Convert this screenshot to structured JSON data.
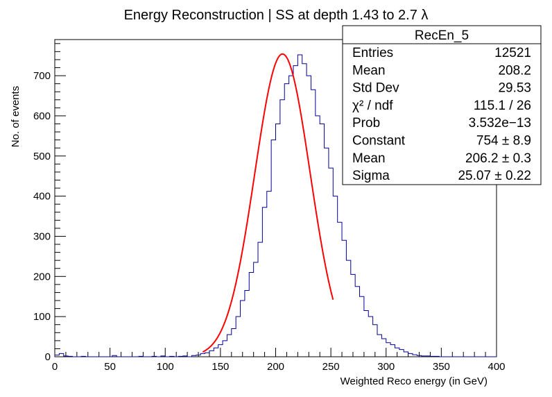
{
  "chart_data": {
    "type": "bar",
    "title": "Energy Reconstruction | SS at depth 1.43 to 2.7 λ",
    "xlabel": "Weighted Reco energy (in GeV)",
    "ylabel": "No. of events",
    "xlim": [
      0,
      400
    ],
    "ylim": [
      0,
      790
    ],
    "xticks": [
      0,
      50,
      100,
      150,
      200,
      250,
      300,
      350,
      400
    ],
    "yticks": [
      0,
      100,
      200,
      300,
      400,
      500,
      600,
      700
    ],
    "bin_width": 4,
    "histogram": {
      "name": "RecEn_5",
      "color": "#000099",
      "bin_low_edges": [
        0,
        4,
        8,
        12,
        16,
        20,
        24,
        28,
        32,
        36,
        40,
        44,
        48,
        52,
        56,
        60,
        64,
        68,
        72,
        76,
        80,
        84,
        88,
        92,
        96,
        100,
        104,
        108,
        112,
        116,
        120,
        124,
        128,
        132,
        136,
        140,
        144,
        148,
        152,
        156,
        160,
        164,
        168,
        172,
        176,
        180,
        184,
        188,
        192,
        196,
        200,
        204,
        208,
        212,
        216,
        220,
        224,
        228,
        232,
        236,
        240,
        244,
        248,
        252,
        256,
        260,
        264,
        268,
        272,
        276,
        280,
        284,
        288,
        292,
        296,
        300,
        304,
        308,
        312,
        316,
        320,
        324,
        328,
        332,
        336,
        340,
        344,
        348,
        352,
        356,
        360,
        364,
        368,
        372,
        376,
        380,
        384,
        388,
        392,
        396
      ],
      "counts": [
        4,
        8,
        2,
        1,
        0,
        0,
        1,
        0,
        0,
        0,
        0,
        0,
        0,
        3,
        0,
        0,
        0,
        0,
        0,
        1,
        0,
        0,
        1,
        0,
        2,
        0,
        1,
        0,
        1,
        2,
        0,
        3,
        4,
        8,
        10,
        15,
        22,
        30,
        40,
        55,
        70,
        100,
        140,
        165,
        210,
        235,
        285,
        372,
        412,
        540,
        580,
        640,
        680,
        700,
        725,
        752,
        730,
        700,
        665,
        600,
        580,
        520,
        470,
        400,
        335,
        290,
        240,
        205,
        175,
        150,
        115,
        100,
        80,
        55,
        45,
        35,
        30,
        22,
        18,
        12,
        8,
        5,
        3,
        2,
        2,
        1,
        1,
        0,
        0,
        0,
        0,
        0,
        0,
        0,
        0,
        0,
        0,
        0,
        0,
        0
      ]
    },
    "fit": {
      "type": "gaussian",
      "color": "#ff0000",
      "constant": 754,
      "mean": 206.2,
      "sigma": 25.07,
      "range": [
        134,
        252
      ]
    },
    "stats_box": {
      "title": "RecEn_5",
      "rows": [
        {
          "label": "Entries",
          "value": "12521"
        },
        {
          "label": "Mean",
          "value": "208.2"
        },
        {
          "label": "Std Dev",
          "value": "29.53"
        },
        {
          "label": "χ² / ndf",
          "value": "115.1 / 26"
        },
        {
          "label": "Prob",
          "value": "3.532e−13"
        },
        {
          "label": "Constant",
          "value": "754 ± 8.9"
        },
        {
          "label": "Mean",
          "value": "206.2 ± 0.3"
        },
        {
          "label": "Sigma",
          "value": "25.07 ± 0.22"
        }
      ]
    }
  }
}
